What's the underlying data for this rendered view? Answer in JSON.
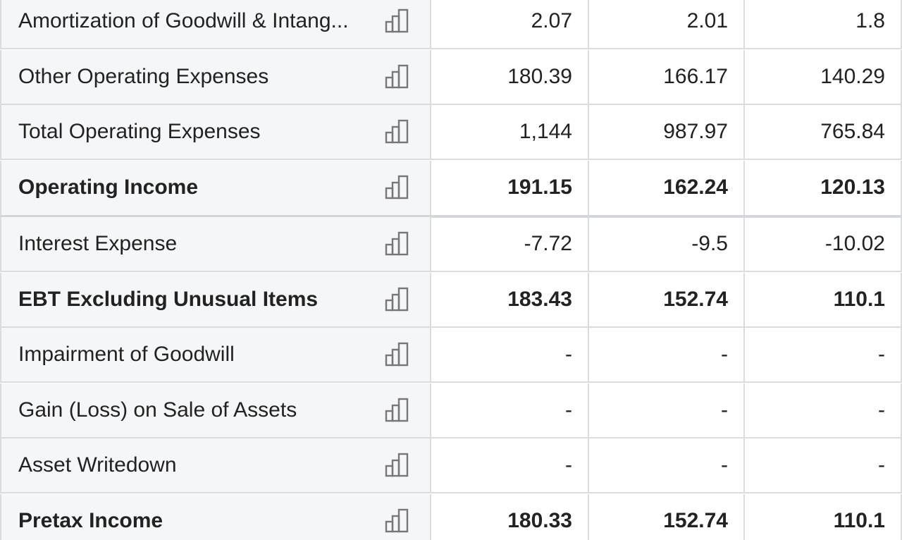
{
  "table": {
    "rows": [
      {
        "label": "Amortization of Goodwill & Intang...",
        "bold": false,
        "values": [
          "2.07",
          "2.01",
          "1.8"
        ]
      },
      {
        "label": "Other Operating Expenses",
        "bold": false,
        "values": [
          "180.39",
          "166.17",
          "140.29"
        ]
      },
      {
        "label": "Total Operating Expenses",
        "bold": false,
        "values": [
          "1,144",
          "987.97",
          "765.84"
        ]
      },
      {
        "label": "Operating Income",
        "bold": true,
        "values": [
          "191.15",
          "162.24",
          "120.13"
        ]
      },
      {
        "label": "Interest Expense",
        "bold": false,
        "values": [
          "-7.72",
          "-9.5",
          "-10.02"
        ]
      },
      {
        "label": "EBT Excluding Unusual Items",
        "bold": true,
        "values": [
          "183.43",
          "152.74",
          "110.1"
        ]
      },
      {
        "label": "Impairment of Goodwill",
        "bold": false,
        "values": [
          "-",
          "-",
          "-"
        ]
      },
      {
        "label": "Gain (Loss) on Sale of Assets",
        "bold": false,
        "values": [
          "-",
          "-",
          "-"
        ]
      },
      {
        "label": "Asset Writedown",
        "bold": false,
        "values": [
          "-",
          "-",
          "-"
        ]
      },
      {
        "label": "Pretax Income",
        "bold": true,
        "values": [
          "180.33",
          "152.74",
          "110.1"
        ]
      }
    ]
  }
}
